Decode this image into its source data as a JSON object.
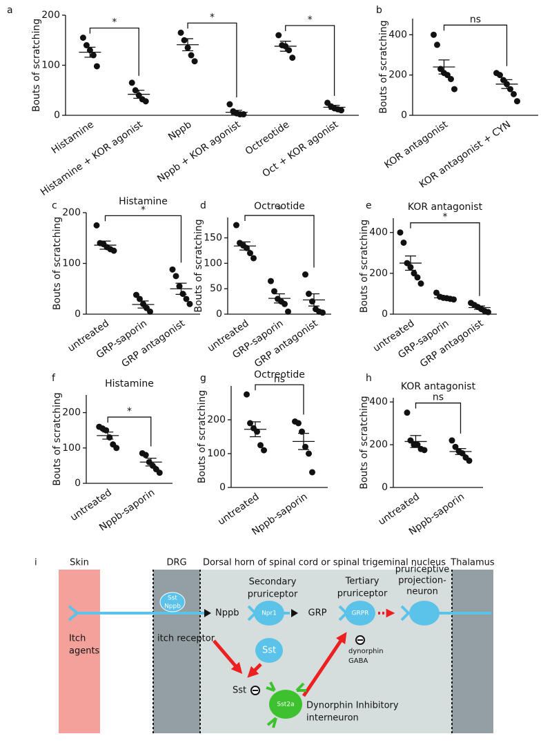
{
  "chart_data": [
    {
      "type": "dot",
      "label": "a",
      "ylabel": "Bouts of scratching",
      "categories": [
        "Histamine",
        "Histamine + KOR agonist",
        "Nppb",
        "Nppb + KOR agonist",
        "Octreotide",
        "Oct + KOR agonist"
      ],
      "points": [
        [
          155,
          140,
          130,
          120,
          98
        ],
        [
          65,
          50,
          40,
          32,
          28
        ],
        [
          165,
          150,
          135,
          120,
          108
        ],
        [
          22,
          8,
          4,
          2,
          2
        ],
        [
          160,
          140,
          138,
          130,
          115
        ],
        [
          25,
          18,
          14,
          12,
          10
        ]
      ],
      "means": [
        126,
        42,
        141,
        6,
        138,
        16
      ],
      "sems": [
        10,
        8,
        12,
        4,
        10,
        4
      ],
      "ylim": [
        0,
        200
      ],
      "yticks": [
        0,
        100,
        200
      ],
      "brackets": [
        {
          "pair": [
            0,
            1
          ],
          "label": "*"
        },
        {
          "pair": [
            2,
            3
          ],
          "label": "*"
        },
        {
          "pair": [
            4,
            5
          ],
          "label": "*"
        }
      ]
    },
    {
      "type": "dot",
      "label": "b",
      "ylabel": "Bouts of scratching",
      "categories": [
        "KOR antagonist",
        "KOR antagonist + CYN"
      ],
      "points": [
        [
          400,
          350,
          230,
          210,
          200,
          180,
          130
        ],
        [
          210,
          200,
          175,
          155,
          130,
          105,
          70
        ]
      ],
      "means": [
        240,
        155
      ],
      "sems": [
        35,
        22
      ],
      "ylim": [
        0,
        480
      ],
      "yticks": [
        0,
        200,
        400
      ],
      "brackets": [
        {
          "pair": [
            0,
            1
          ],
          "label": "ns"
        }
      ]
    },
    {
      "type": "dot",
      "label": "c",
      "title": "Histamine",
      "ylabel": "Bouts of scratching",
      "categories": [
        "untreated",
        "GRP-saporin",
        "GRP antagonist"
      ],
      "points": [
        [
          175,
          140,
          138,
          132,
          128,
          125
        ],
        [
          38,
          30,
          20,
          12,
          5
        ],
        [
          88,
          75,
          55,
          40,
          30,
          20
        ]
      ],
      "means": [
        136,
        19,
        50
      ],
      "sems": [
        8,
        7,
        11
      ],
      "ylim": [
        0,
        200
      ],
      "yticks": [
        0,
        100,
        200
      ],
      "brackets": [
        {
          "pair": [
            0,
            2
          ],
          "label": "*"
        }
      ]
    },
    {
      "type": "dot",
      "label": "d",
      "title": "Octreotide",
      "ylabel": "Bouts of scratching",
      "categories": [
        "untreated",
        "GRP-saporin",
        "GRP antagonist"
      ],
      "points": [
        [
          175,
          140,
          135,
          130,
          120,
          110
        ],
        [
          65,
          45,
          30,
          25,
          20,
          5
        ],
        [
          78,
          40,
          25,
          10,
          5,
          3
        ]
      ],
      "means": [
        134,
        31,
        28
      ],
      "sems": [
        8,
        9,
        12
      ],
      "ylim": [
        0,
        190
      ],
      "yticks": [
        0,
        50,
        100,
        150
      ],
      "brackets": [
        {
          "pair": [
            0,
            2
          ],
          "label": "*"
        }
      ]
    },
    {
      "type": "dot",
      "label": "e",
      "title": "KOR antagonist",
      "ylabel": "Bouts of scratching",
      "categories": [
        "untreated",
        "GRP-saporin",
        "GRP antagonist"
      ],
      "points": [
        [
          400,
          350,
          250,
          230,
          200,
          180,
          150
        ],
        [
          105,
          85,
          80,
          78,
          75,
          72
        ],
        [
          55,
          45,
          35,
          25,
          15,
          10
        ]
      ],
      "means": [
        250,
        80,
        32
      ],
      "sems": [
        35,
        6,
        8
      ],
      "ylim": [
        0,
        470
      ],
      "yticks": [
        0,
        200,
        400
      ],
      "brackets": [
        {
          "pair": [
            0,
            2
          ],
          "label": "*"
        }
      ]
    },
    {
      "type": "dot",
      "label": "f",
      "title": "Histamine",
      "ylabel": "Bouts of scratching",
      "categories": [
        "untreated",
        "Nppb-saporin"
      ],
      "points": [
        [
          160,
          155,
          150,
          130,
          110,
          100
        ],
        [
          85,
          80,
          60,
          50,
          40,
          30
        ]
      ],
      "means": [
        135,
        60
      ],
      "sems": [
        10,
        11
      ],
      "ylim": [
        0,
        250
      ],
      "yticks": [
        0,
        100,
        200
      ],
      "brackets": [
        {
          "pair": [
            0,
            1
          ],
          "label": "*"
        }
      ]
    },
    {
      "type": "dot",
      "label": "g",
      "title": "Octreotide",
      "ylabel": "Bouts of scratching",
      "categories": [
        "untreated",
        "Nppb-saporin"
      ],
      "points": [
        [
          275,
          190,
          175,
          165,
          125,
          110
        ],
        [
          195,
          190,
          165,
          120,
          100,
          45
        ]
      ],
      "means": [
        172,
        136
      ],
      "sems": [
        22,
        24
      ],
      "ylim": [
        0,
        300
      ],
      "yticks": [
        0,
        100,
        200
      ],
      "brackets": [
        {
          "pair": [
            0,
            1
          ],
          "label": "ns"
        }
      ]
    },
    {
      "type": "dot",
      "label": "h",
      "title": "KOR antagonist",
      "ylabel": "Bouts of scratching",
      "categories": [
        "untreated",
        "Nppb-saporin"
      ],
      "points": [
        [
          350,
          220,
          200,
          200,
          180,
          175
        ],
        [
          220,
          190,
          170,
          160,
          140,
          125
        ]
      ],
      "means": [
        215,
        168
      ],
      "sems": [
        28,
        14
      ],
      "ylim": [
        0,
        420
      ],
      "yticks": [
        0,
        200,
        400
      ],
      "brackets": [
        {
          "pair": [
            0,
            1
          ],
          "label": "ns"
        }
      ]
    }
  ],
  "diagram": {
    "label": "i",
    "regions": [
      "Skin",
      "DRG",
      "Dorsal horn of spinal cord or spinal trigeminal nucleus",
      "Thalamus"
    ],
    "itch_agents": [
      "Itch",
      "agents"
    ],
    "drg_cell": [
      "Sst",
      "Nppb"
    ],
    "itch_receptor": "itch receptor",
    "nppb": "Nppb",
    "npr1": "Npr1",
    "secondary": [
      "Secondary",
      "pruriceptor"
    ],
    "sst_cell": "Sst",
    "grp": "GRP",
    "grpr": "GRPR",
    "tertiary": [
      "Tertiary",
      "pruriceptor"
    ],
    "projection": [
      "pruriceptive",
      "projection-",
      "neuron"
    ],
    "dynorphin": "dynorphin",
    "gaba": "GABA",
    "sst_release": "Sst",
    "sst2a": "Sst2a",
    "interneuron": [
      "Dynorphin Inhibitory",
      "interneuron"
    ]
  }
}
